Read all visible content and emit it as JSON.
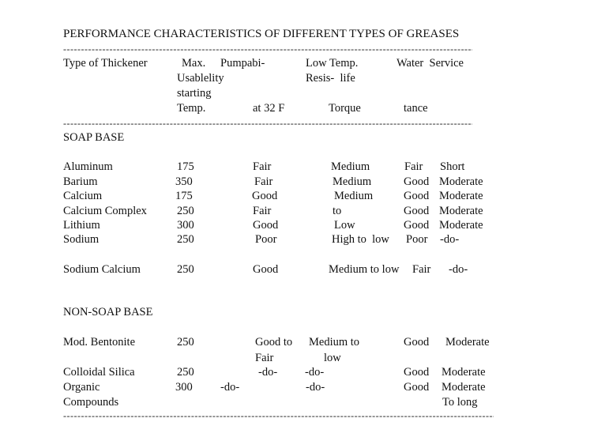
{
  "title": "PERFORMANCE CHARACTERISTICS OF DIFFERENT TYPES OF GREASES",
  "rule": "------------------------------------------------------------------------------------------------------------------------------------------------------------------------------------------------",
  "header": {
    "thickener": "Type of Thickener",
    "max_usability_l1": "Max.",
    "max_usability_l2": "Usablelity",
    "max_usability_l3": "starting",
    "max_usability_l4": "Temp.",
    "pumpability_l1": "Pumpabi-",
    "pumpability_l2": "at 32 F",
    "low_temp_l1": "Low Temp.",
    "low_temp_l2": "Resis-  life",
    "low_temp_l3": "Torque",
    "water_l1": "Water  Service",
    "water_l2": "tance"
  },
  "soap": {
    "heading": "SOAP BASE",
    "rows": [
      {
        "name": "Aluminum",
        "temp": "175",
        "pump": "Fair",
        "torque": "Medium",
        "water": "Fair",
        "life": "Short"
      },
      {
        "name": "Barium",
        "temp": "350",
        "pump": "Fair",
        "torque": "Medium",
        "water": "Good",
        "life": "Moderate"
      },
      {
        "name": "Calcium",
        "temp": "175",
        "pump": "Good",
        "torque": "Medium",
        "water": "Good",
        "life": "Moderate"
      },
      {
        "name": "Calcium Complex",
        "temp": "250",
        "pump": "Fair",
        "torque": "to",
        "water": "Good",
        "life": "Moderate"
      },
      {
        "name": "Lithium",
        "temp": "300",
        "pump": "Good",
        "torque": "Low",
        "water": "Good",
        "life": "Moderate"
      },
      {
        "name": "Sodium",
        "temp": "250",
        "pump": "Poor",
        "torque": "High to  low",
        "water": "Poor",
        "life": "-do-"
      },
      {
        "name": "Sodium Calcium",
        "temp": "250",
        "pump": "Good",
        "torque": "Medium to low",
        "water": "Fair",
        "life": "-do-"
      }
    ]
  },
  "nonsoap": {
    "heading": "NON-SOAP BASE",
    "rows": [
      {
        "name": "Mod. Bentonite",
        "temp": "250",
        "pump_l1": "Good to",
        "pump_l2": "Fair",
        "torque_l1": "Medium to",
        "torque_l2": "low",
        "water": "Good",
        "life": "Moderate"
      },
      {
        "name": "Colloidal Silica",
        "temp": "250",
        "pump": "-do-",
        "torque": "-do-",
        "water": "Good",
        "life": "Moderate"
      },
      {
        "name_l1": "Organic",
        "name_l2": "Compounds",
        "temp": "300",
        "pump": "-do-",
        "torque": "-do-",
        "water": "Good",
        "life_l1": "Moderate",
        "life_l2": "To long"
      }
    ]
  }
}
